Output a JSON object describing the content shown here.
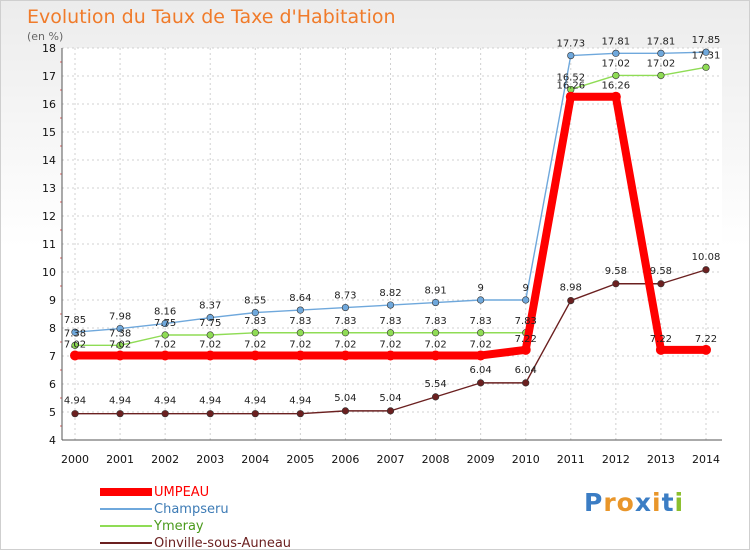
{
  "title": "Evolution du Taux de Taxe d'Habitation",
  "subtitle": "(en %)",
  "logo_text": "Proxiti",
  "chart_data": {
    "type": "line",
    "x": [
      "2000",
      "2001",
      "2002",
      "2003",
      "2004",
      "2005",
      "2006",
      "2007",
      "2008",
      "2009",
      "2010",
      "2011",
      "2012",
      "2013",
      "2014"
    ],
    "ylim": [
      4,
      18
    ],
    "yticks": [
      4,
      5,
      6,
      7,
      8,
      9,
      10,
      11,
      12,
      13,
      14,
      15,
      16,
      17,
      18
    ],
    "grid": true,
    "legend_position": "bottom-left",
    "series": [
      {
        "name": "UMPEAU",
        "color": "#ff0000",
        "values": [
          7.02,
          7.02,
          7.02,
          7.02,
          7.02,
          7.02,
          7.02,
          7.02,
          7.02,
          7.02,
          7.22,
          16.26,
          16.26,
          7.22,
          7.22
        ],
        "labels": [
          "7.02",
          "7.02",
          "7.02",
          "7.02",
          "7.02",
          "7.02",
          "7.02",
          "7.02",
          "7.02",
          "7.02",
          "7.22",
          "16.26",
          "16.26",
          "7.22",
          "7.22"
        ]
      },
      {
        "name": "Champseru",
        "color": "#6fa8dc",
        "values": [
          7.85,
          7.98,
          8.16,
          8.37,
          8.55,
          8.64,
          8.73,
          8.82,
          8.91,
          9,
          9,
          17.73,
          17.81,
          17.81,
          17.85
        ],
        "labels": [
          "7.85",
          "7.98",
          "8.16",
          "8.37",
          "8.55",
          "8.64",
          "8.73",
          "8.82",
          "8.91",
          "9",
          "9",
          "17.73",
          "17.81",
          "17.81",
          "17.85"
        ]
      },
      {
        "name": "Ymeray",
        "color": "#8fdc55",
        "values": [
          7.38,
          7.38,
          7.75,
          7.75,
          7.83,
          7.83,
          7.83,
          7.83,
          7.83,
          7.83,
          7.83,
          16.52,
          17.02,
          17.02,
          17.31
        ],
        "labels": [
          "7.38",
          "7.38",
          "7.75",
          "7.75",
          "7.83",
          "7.83",
          "7.83",
          "7.83",
          "7.83",
          "7.83",
          "7.83",
          "16.52",
          "17.02",
          "17.02",
          "17.31"
        ]
      },
      {
        "name": "Oinville-sous-Auneau",
        "color": "#6b2020",
        "values": [
          4.94,
          4.94,
          4.94,
          4.94,
          4.94,
          4.94,
          5.04,
          5.04,
          5.54,
          6.04,
          6.04,
          8.98,
          9.58,
          9.58,
          10.08
        ],
        "labels": [
          "4.94",
          "4.94",
          "4.94",
          "4.94",
          "4.94",
          "4.94",
          "5.04",
          "5.04",
          "5.54",
          "6.04",
          "6.04",
          "8.98",
          "9.58",
          "9.58",
          "10.08"
        ]
      }
    ]
  }
}
